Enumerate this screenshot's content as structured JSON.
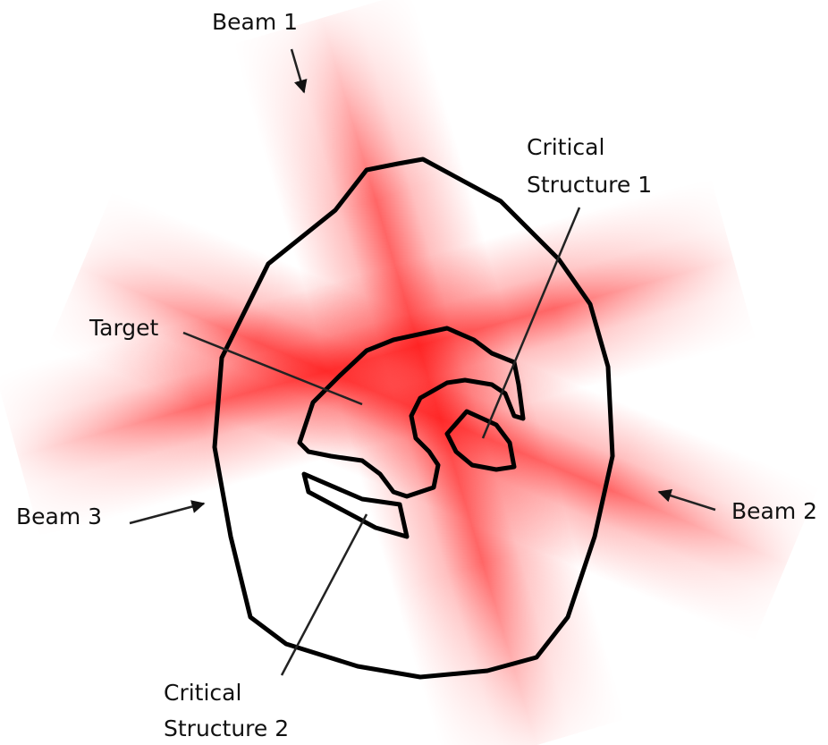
{
  "labels": {
    "beam_1": "Beam 1",
    "beam_2": "Beam 2",
    "beam_3": "Beam 3",
    "target": "Target",
    "critical_structure_1": [
      "Critical",
      "Structure 1"
    ],
    "critical_structure_2": [
      "Critical",
      "Structure 2"
    ]
  }
}
